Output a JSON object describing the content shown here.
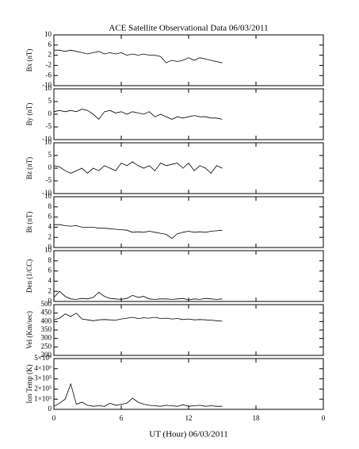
{
  "chart_data": [
    {
      "type": "line",
      "title": "ACE Satellite Observational Data   06/03/2011",
      "ylabel": "Bx (nT)",
      "color": "#000000",
      "x": [
        0,
        0.5,
        1,
        1.5,
        2,
        2.5,
        3,
        3.5,
        4,
        4.5,
        5,
        5.5,
        6,
        6.5,
        7,
        7.5,
        8,
        8.5,
        9,
        9.5,
        10,
        10.5,
        11,
        11.5,
        12,
        12.5,
        13,
        13.5,
        14,
        14.5,
        15
      ],
      "values": [
        4,
        4,
        3.5,
        4,
        3.5,
        3,
        2.5,
        3,
        3.5,
        2.5,
        3,
        2.5,
        3,
        2,
        2.5,
        2,
        2.5,
        2,
        2,
        1.5,
        -1,
        0,
        -0.5,
        0,
        1,
        0,
        1,
        0.5,
        0,
        -0.5,
        -1
      ],
      "xlim": [
        0,
        24
      ],
      "ylim": [
        -10,
        10
      ],
      "yticks": [
        -10,
        -6,
        -2,
        2,
        6,
        10
      ]
    },
    {
      "type": "line",
      "ylabel": "By (nT)",
      "color": "#000000",
      "x": [
        0,
        0.5,
        1,
        1.5,
        2,
        2.5,
        3,
        3.5,
        4,
        4.5,
        5,
        5.5,
        6,
        6.5,
        7,
        7.5,
        8,
        8.5,
        9,
        9.5,
        10,
        10.5,
        11,
        11.5,
        12,
        12.5,
        13,
        13.5,
        14,
        14.5,
        15
      ],
      "values": [
        1,
        1.5,
        1,
        1.5,
        1,
        2,
        1.5,
        0,
        -2,
        1,
        1.5,
        0.5,
        1,
        0,
        1,
        0.5,
        0,
        1,
        -1,
        0,
        -1,
        -2,
        -1,
        -1.5,
        -1,
        -0.5,
        -1,
        -1,
        -1.5,
        -1.5,
        -2
      ],
      "xlim": [
        0,
        24
      ],
      "ylim": [
        -10,
        10
      ],
      "yticks": [
        -10,
        -5,
        0,
        5,
        10
      ]
    },
    {
      "type": "line",
      "ylabel": "Bz (nT)",
      "color": "#000000",
      "x": [
        0,
        0.5,
        1,
        1.5,
        2,
        2.5,
        3,
        3.5,
        4,
        4.5,
        5,
        5.5,
        6,
        6.5,
        7,
        7.5,
        8,
        8.5,
        9,
        9.5,
        10,
        10.5,
        11,
        11.5,
        12,
        12.5,
        13,
        13.5,
        14,
        14.5,
        15
      ],
      "values": [
        1,
        0.5,
        -1,
        -2,
        -1,
        0,
        -2,
        0,
        -1,
        1,
        0,
        -1,
        2,
        1,
        2.5,
        1,
        0,
        1,
        -1,
        2,
        1,
        1.5,
        2,
        0,
        2,
        -1,
        1,
        0,
        -2,
        1,
        0
      ],
      "xlim": [
        0,
        24
      ],
      "ylim": [
        -10,
        10
      ],
      "yticks": [
        -10,
        -5,
        0,
        5,
        10
      ]
    },
    {
      "type": "line",
      "ylabel": "Bt (nT)",
      "color": "#000000",
      "x": [
        0,
        0.5,
        1,
        1.5,
        2,
        2.5,
        3,
        3.5,
        4,
        4.5,
        5,
        5.5,
        6,
        6.5,
        7,
        7.5,
        8,
        8.5,
        9,
        9.5,
        10,
        10.5,
        11,
        11.5,
        12,
        12.5,
        13,
        13.5,
        14,
        14.5,
        15
      ],
      "values": [
        4.5,
        4.5,
        4.3,
        4.2,
        4.3,
        4,
        4,
        4,
        3.8,
        3.8,
        3.7,
        3.6,
        3.5,
        3.4,
        3,
        3.1,
        3,
        3.2,
        3,
        2.8,
        2.6,
        1.8,
        2.7,
        3,
        3.2,
        3,
        3.1,
        3,
        3.2,
        3.3,
        3.4
      ],
      "xlim": [
        0,
        24
      ],
      "ylim": [
        0,
        10
      ],
      "yticks": [
        0,
        2,
        4,
        6,
        8,
        10
      ]
    },
    {
      "type": "line",
      "ylabel": "Den (1/CC)",
      "color": "#000000",
      "x": [
        0,
        0.5,
        1,
        1.5,
        2,
        2.5,
        3,
        3.5,
        4,
        4.5,
        5,
        5.5,
        6,
        6.5,
        7,
        7.5,
        8,
        8.5,
        9,
        9.5,
        10,
        10.5,
        11,
        11.5,
        12,
        12.5,
        13,
        13.5,
        14,
        14.5,
        15
      ],
      "values": [
        0.8,
        2,
        1,
        0.5,
        0.4,
        0.6,
        0.5,
        0.8,
        1.8,
        1,
        0.6,
        0.5,
        0.4,
        0.6,
        1.2,
        0.8,
        1,
        0.5,
        0.4,
        0.5,
        0.5,
        0.4,
        0.5,
        0.6,
        0.3,
        0.5,
        0.4,
        0.6,
        0.5,
        0.4,
        0.5
      ],
      "xlim": [
        0,
        24
      ],
      "ylim": [
        0,
        10
      ],
      "yticks": [
        0,
        2,
        4,
        6,
        8,
        10
      ]
    },
    {
      "type": "line",
      "ylabel": "Vel (Km/sec)",
      "color": "#000000",
      "x": [
        0,
        0.5,
        1,
        1.5,
        2,
        2.5,
        3,
        3.5,
        4,
        4.5,
        5,
        5.5,
        6,
        6.5,
        7,
        7.5,
        8,
        8.5,
        9,
        9.5,
        10,
        10.5,
        11,
        11.5,
        12,
        12.5,
        13,
        13.5,
        14,
        14.5,
        15
      ],
      "values": [
        410,
        420,
        445,
        430,
        450,
        415,
        410,
        405,
        410,
        412,
        410,
        408,
        415,
        420,
        425,
        418,
        422,
        420,
        425,
        418,
        420,
        415,
        418,
        412,
        415,
        410,
        412,
        410,
        408,
        405,
        402
      ],
      "xlim": [
        0,
        24
      ],
      "ylim": [
        200,
        500
      ],
      "yticks": [
        200,
        250,
        300,
        350,
        400,
        450,
        500
      ]
    },
    {
      "type": "line",
      "ylabel": "Ion Temp (K)",
      "xlabel": "UT (Hour)  06/03/2011",
      "color": "#000000",
      "x": [
        0,
        0.5,
        1,
        1.5,
        2,
        2.5,
        3,
        3.5,
        4,
        4.5,
        5,
        5.5,
        6,
        6.5,
        7,
        7.5,
        8,
        8.5,
        9,
        9.5,
        10,
        10.5,
        11,
        11.5,
        12,
        12.5,
        13,
        13.5,
        14,
        14.5,
        15
      ],
      "values": [
        30000,
        60000,
        100000,
        250000,
        50000,
        70000,
        40000,
        30000,
        35000,
        30000,
        60000,
        40000,
        50000,
        60000,
        110000,
        70000,
        50000,
        40000,
        35000,
        30000,
        40000,
        35000,
        30000,
        45000,
        30000,
        35000,
        40000,
        30000,
        35000,
        30000,
        30000
      ],
      "xlim": [
        0,
        24
      ],
      "xticks": [
        0,
        6,
        12,
        18,
        {
          "value": 24,
          "label": "0"
        }
      ],
      "ylim": [
        0,
        500000
      ],
      "yticks": [
        0,
        {
          "value": 100000,
          "label": "1×10⁵"
        },
        {
          "value": 200000,
          "label": "2×10⁵"
        },
        {
          "value": 300000,
          "label": "3×10⁵"
        },
        {
          "value": 400000,
          "label": "4×10⁵"
        },
        {
          "value": 500000,
          "label": "5×10⁵"
        }
      ]
    }
  ]
}
